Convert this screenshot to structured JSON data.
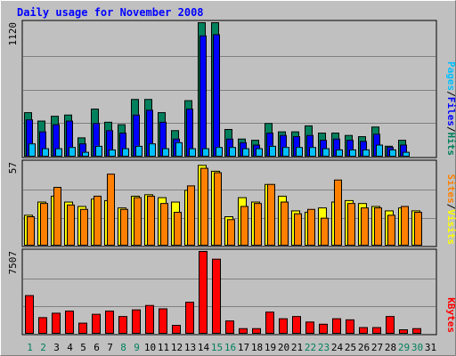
{
  "chart_data": [
    {
      "type": "bar",
      "title": "Daily usage for November 2008",
      "ylabel_parts": [
        "Pages",
        "/",
        "Files",
        "/",
        "Hits"
      ],
      "ymax_label": "1120",
      "ylim": [
        0,
        1120
      ],
      "categories": [
        "1",
        "2",
        "3",
        "4",
        "5",
        "6",
        "7",
        "8",
        "9",
        "10",
        "11",
        "12",
        "13",
        "14",
        "15",
        "16",
        "17",
        "18",
        "19",
        "20",
        "21",
        "22",
        "23",
        "24",
        "25",
        "26",
        "27",
        "28",
        "29",
        "30",
        "31"
      ],
      "weekend_days": [
        "1",
        "2",
        "8",
        "9",
        "15",
        "16",
        "22",
        "23",
        "29",
        "30"
      ],
      "series": [
        {
          "name": "Hits",
          "color": "#00805c",
          "values": [
            370,
            300,
            340,
            350,
            160,
            400,
            290,
            270,
            480,
            480,
            370,
            220,
            470,
            1120,
            1120,
            230,
            150,
            140,
            280,
            210,
            210,
            260,
            200,
            200,
            180,
            170,
            250,
            90,
            140,
            0,
            0
          ]
        },
        {
          "name": "Files",
          "color": "#0000ff",
          "values": [
            310,
            210,
            270,
            300,
            110,
            280,
            220,
            200,
            350,
            390,
            290,
            150,
            400,
            1010,
            1020,
            150,
            120,
            100,
            200,
            180,
            170,
            180,
            140,
            150,
            140,
            130,
            190,
            80,
            100,
            0,
            0
          ]
        },
        {
          "name": "Pages",
          "color": "#00c0ff",
          "values": [
            110,
            70,
            70,
            80,
            40,
            90,
            60,
            70,
            90,
            110,
            70,
            120,
            70,
            70,
            80,
            80,
            70,
            70,
            90,
            80,
            80,
            80,
            70,
            60,
            60,
            60,
            100,
            60,
            40,
            0,
            0
          ]
        }
      ]
    },
    {
      "type": "bar",
      "ylabel_parts": [
        "Sites",
        "/",
        "Visits"
      ],
      "ymax_label": "57",
      "ylim": [
        0,
        57
      ],
      "categories": [
        "1",
        "2",
        "3",
        "4",
        "5",
        "6",
        "7",
        "8",
        "9",
        "10",
        "11",
        "12",
        "13",
        "14",
        "15",
        "16",
        "17",
        "18",
        "19",
        "20",
        "21",
        "22",
        "23",
        "24",
        "25",
        "26",
        "27",
        "28",
        "29",
        "30",
        "31"
      ],
      "series": [
        {
          "name": "Visits",
          "color": "#ffff00",
          "values": [
            21,
            30,
            34,
            30,
            27,
            32,
            31,
            26,
            34,
            35,
            33,
            30,
            38,
            55,
            51,
            20,
            33,
            30,
            42,
            34,
            24,
            23,
            26,
            30,
            31,
            29,
            27,
            24,
            26,
            24,
            0
          ]
        },
        {
          "name": "Sites",
          "color": "#ff8000",
          "values": [
            20,
            29,
            40,
            28,
            25,
            34,
            49,
            25,
            33,
            34,
            29,
            23,
            41,
            53,
            50,
            18,
            27,
            29,
            42,
            30,
            22,
            25,
            19,
            45,
            29,
            26,
            26,
            21,
            27,
            23,
            0
          ]
        }
      ]
    },
    {
      "type": "bar",
      "ylabel_parts": [
        "KBytes"
      ],
      "ymax_label": "7507",
      "ylim": [
        0,
        7507
      ],
      "categories": [
        "1",
        "2",
        "3",
        "4",
        "5",
        "6",
        "7",
        "8",
        "9",
        "10",
        "11",
        "12",
        "13",
        "14",
        "15",
        "16",
        "17",
        "18",
        "19",
        "20",
        "21",
        "22",
        "23",
        "24",
        "25",
        "26",
        "27",
        "28",
        "29",
        "30",
        "31"
      ],
      "series": [
        {
          "name": "KBytes",
          "color": "#ff0000",
          "values": [
            3500,
            1500,
            1900,
            2100,
            1000,
            1800,
            2100,
            1600,
            2200,
            2600,
            2300,
            800,
            2900,
            7507,
            6800,
            1200,
            500,
            500,
            2000,
            1400,
            1600,
            1100,
            900,
            1400,
            1300,
            600,
            600,
            1600,
            400,
            500,
            0
          ]
        }
      ]
    }
  ]
}
